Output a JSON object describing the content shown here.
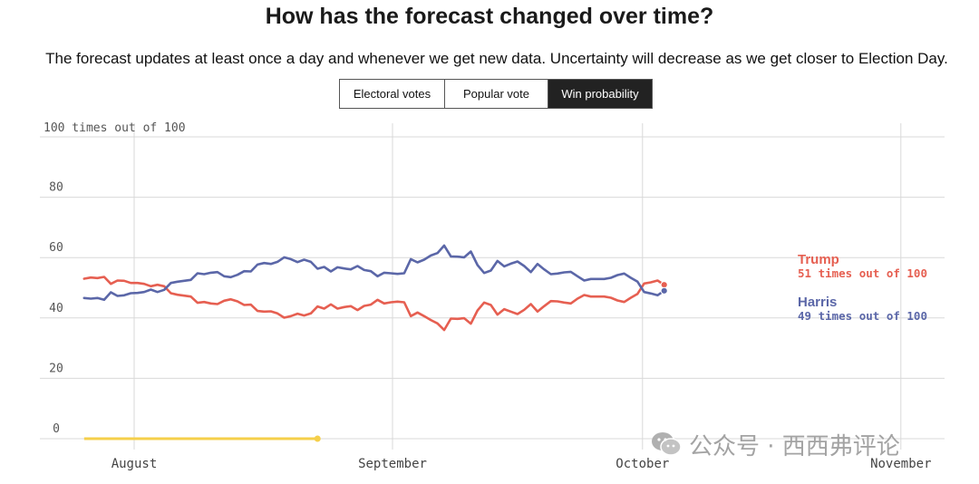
{
  "header": {
    "title": "How has the forecast changed over time?",
    "subtitle": "The forecast updates at least once a day and whenever we get new data. Uncertainty will decrease as we get closer to Election Day."
  },
  "tabs": [
    {
      "label": "Electoral votes",
      "active": false
    },
    {
      "label": "Popular vote",
      "active": false
    },
    {
      "label": "Win probability",
      "active": true
    }
  ],
  "watermark": {
    "text": "公众号 · 西西弗评论",
    "icon": "wechat-icon"
  },
  "chart_data": {
    "type": "line",
    "title": "Win probability",
    "ylabel": "100 times out of 100",
    "ylim": [
      0,
      100
    ],
    "y_ticks": [
      0,
      20,
      40,
      60,
      80
    ],
    "y_tick_labels": [
      "0",
      "20",
      "40",
      "60",
      "80"
    ],
    "top_label": "100 times out of 100",
    "x_range_days": [
      -20,
      88
    ],
    "x_ticks": [
      {
        "day": 0,
        "label": "August"
      },
      {
        "day": 31,
        "label": "September"
      },
      {
        "day": 61,
        "label": "October"
      },
      {
        "day": 92,
        "label": "November"
      }
    ],
    "grid": true,
    "highlight_segment": {
      "color": "#f5cf4a",
      "y": 0,
      "x_start_day": -6,
      "x_end_day": 22
    },
    "series": [
      {
        "name": "Trump",
        "color": "#e65f51",
        "label_text": "51 times out of 100",
        "final_value": 51,
        "x_start_day": -6,
        "x_step_days": 0.8,
        "values": [
          53,
          53.4,
          53.2,
          53.6,
          51.3,
          52.4,
          52.3,
          51.6,
          51.6,
          51.3,
          50.5,
          51,
          50.5,
          48.2,
          47.7,
          47.4,
          47.1,
          45,
          45.3,
          44.8,
          44.6,
          45.7,
          46.2,
          45.5,
          44.3,
          44.4,
          42.3,
          42.1,
          42.2,
          41.5,
          40.1,
          40.6,
          41.4,
          40.8,
          41.5,
          43.8,
          43.1,
          44.5,
          43.1,
          43.6,
          43.9,
          42.6,
          44,
          44.4,
          46,
          44.8,
          45.2,
          45.4,
          45.2,
          40.6,
          41.8,
          40.6,
          39.3,
          38.2,
          36,
          39.8,
          39.7,
          39.9,
          38.1,
          42.5,
          45.1,
          44.3,
          41.1,
          42.9,
          42.1,
          41.3,
          42.7,
          44.6,
          42.1,
          43.9,
          45.6,
          45.5,
          45.1,
          44.8,
          46.4,
          47.6,
          47.1,
          47.1,
          47.1,
          46.7,
          45.8,
          45.3,
          46.7,
          48,
          51.4,
          51.8,
          52.4,
          51
        ]
      },
      {
        "name": "Harris",
        "color": "#5b67a8",
        "label_text": "49 times out of 100",
        "final_value": 49,
        "x_start_day": -6,
        "x_step_days": 0.8,
        "values": [
          46.6,
          46.4,
          46.6,
          46,
          48.5,
          47.3,
          47.5,
          48.2,
          48.3,
          48.6,
          49.4,
          48.6,
          49.3,
          51.6,
          52,
          52.3,
          52.6,
          54.8,
          54.5,
          55,
          55.2,
          53.8,
          53.5,
          54.3,
          55.5,
          55.4,
          57.7,
          58.2,
          57.9,
          58.6,
          60.1,
          59.5,
          58.5,
          59.3,
          58.6,
          56.3,
          56.9,
          55.4,
          56.8,
          56.4,
          56.1,
          57.2,
          55.9,
          55.5,
          53.8,
          55,
          54.8,
          54.6,
          54.8,
          59.5,
          58.4,
          59.3,
          60.7,
          61.5,
          64,
          60.4,
          60.3,
          60.1,
          62,
          57.5,
          54.9,
          55.7,
          58.9,
          57.1,
          58,
          58.7,
          57.2,
          55.2,
          57.9,
          56.1,
          54.5,
          54.7,
          55.1,
          55.3,
          53.8,
          52.4,
          52.9,
          52.9,
          52.9,
          53.3,
          54.2,
          54.7,
          53.3,
          52,
          48.6,
          48.1,
          47.5,
          49
        ]
      }
    ]
  }
}
